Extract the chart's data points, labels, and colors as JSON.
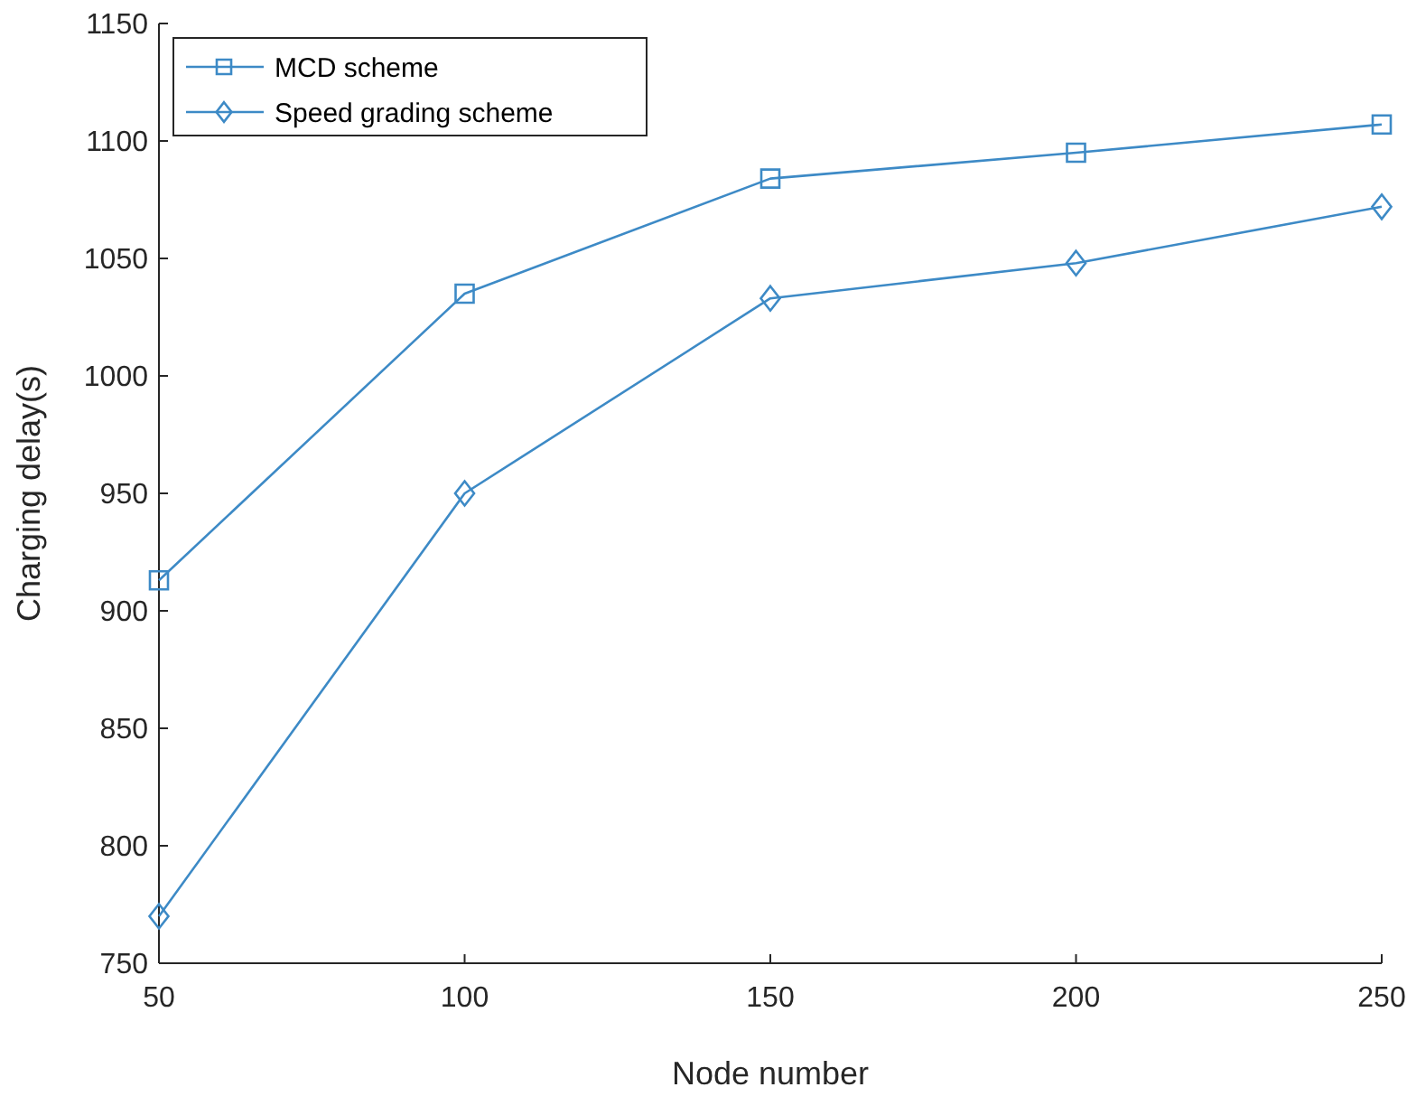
{
  "chart_data": {
    "type": "line",
    "xlabel": "Node number",
    "ylabel": "Charging delay(s)",
    "x": [
      50,
      100,
      150,
      200,
      250
    ],
    "series": [
      {
        "name": "MCD scheme",
        "color": "#3d8ac6",
        "values": [
          913,
          1035,
          1084,
          1095,
          1107
        ],
        "marker": "square"
      },
      {
        "name": "Speed grading scheme",
        "color": "#3d8ac6",
        "values": [
          770,
          950,
          1033,
          1048,
          1072
        ],
        "marker": "diamond"
      }
    ],
    "xlim": [
      50,
      250
    ],
    "xticks": [
      50,
      100,
      150,
      200,
      250
    ],
    "ylim": [
      750,
      1150
    ],
    "yticks": [
      750,
      800,
      850,
      900,
      950,
      1000,
      1050,
      1100,
      1150
    ],
    "grid": false,
    "legend": "top left",
    "line_style": "solid"
  }
}
